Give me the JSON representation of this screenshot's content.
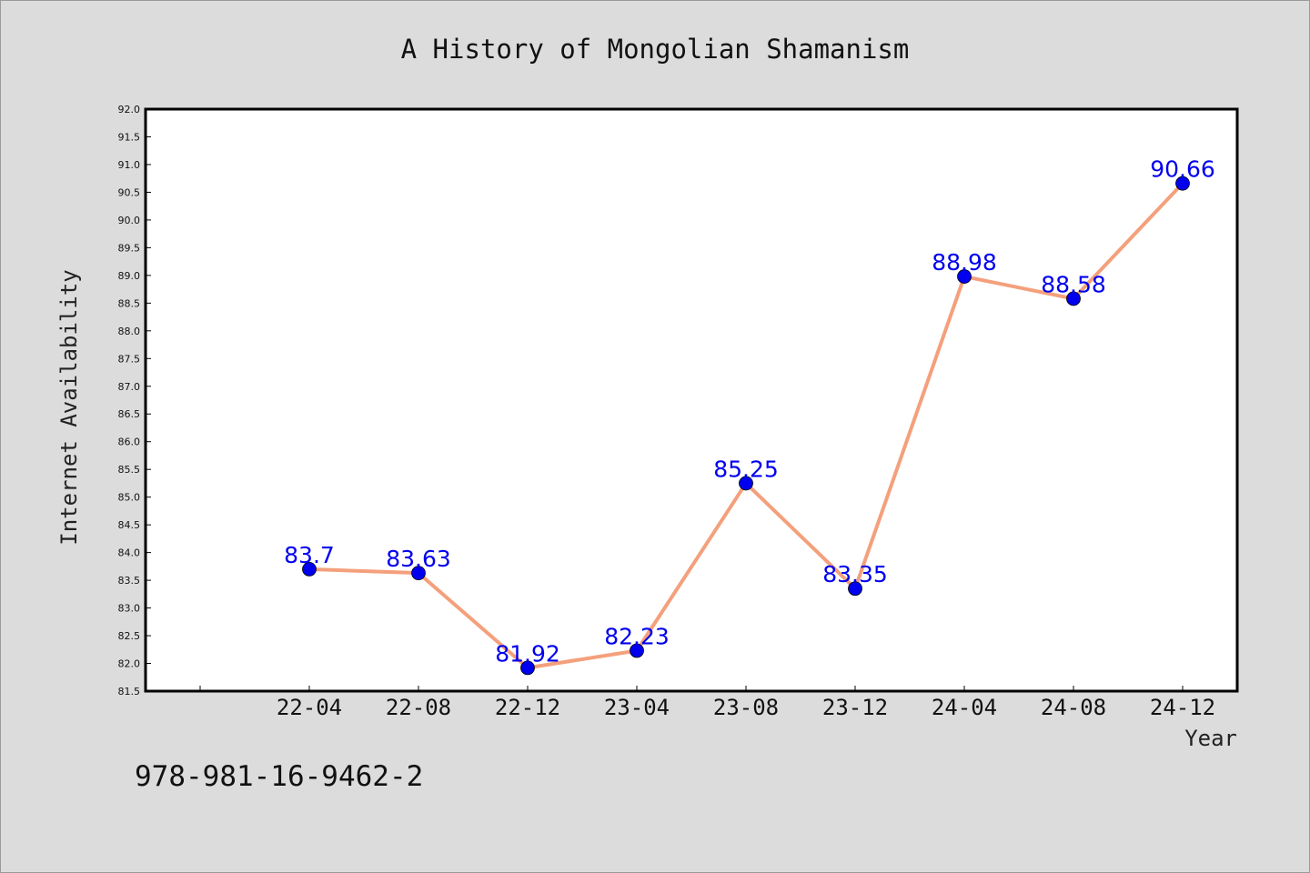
{
  "chart_data": {
    "type": "line",
    "title": "A History of Mongolian Shamanism",
    "xlabel": "Year",
    "ylabel": "Internet Availability",
    "categories": [
      "22-04",
      "22-08",
      "22-12",
      "23-04",
      "23-08",
      "23-12",
      "24-04",
      "24-08",
      "24-12"
    ],
    "series": [
      {
        "values": [
          83.7,
          83.63,
          81.92,
          82.23,
          85.25,
          83.35,
          88.98,
          88.58,
          90.66
        ]
      }
    ],
    "data_labels": [
      "83.7",
      "83.63",
      "81.92",
      "82.23",
      "85.25",
      "83.35",
      "88.98",
      "88.58",
      "90.66"
    ],
    "ylim": [
      81.5,
      92.0
    ],
    "y_ticks": [
      "81.5",
      "82.0",
      "82.5",
      "83.0",
      "83.5",
      "84.0",
      "84.5",
      "85.0",
      "85.5",
      "86.0",
      "86.5",
      "87.0",
      "87.5",
      "88.0",
      "88.5",
      "89.0",
      "89.5",
      "90.0",
      "90.5",
      "91.0",
      "91.5",
      "92.0"
    ],
    "grid": false,
    "colors": {
      "line": "#f4a07c",
      "marker": "#0000ee",
      "label": "#0000ee",
      "plot_bg": "#ffffff",
      "figure_bg": "#dcdcdc"
    }
  },
  "footnote": "978-981-16-9462-2"
}
